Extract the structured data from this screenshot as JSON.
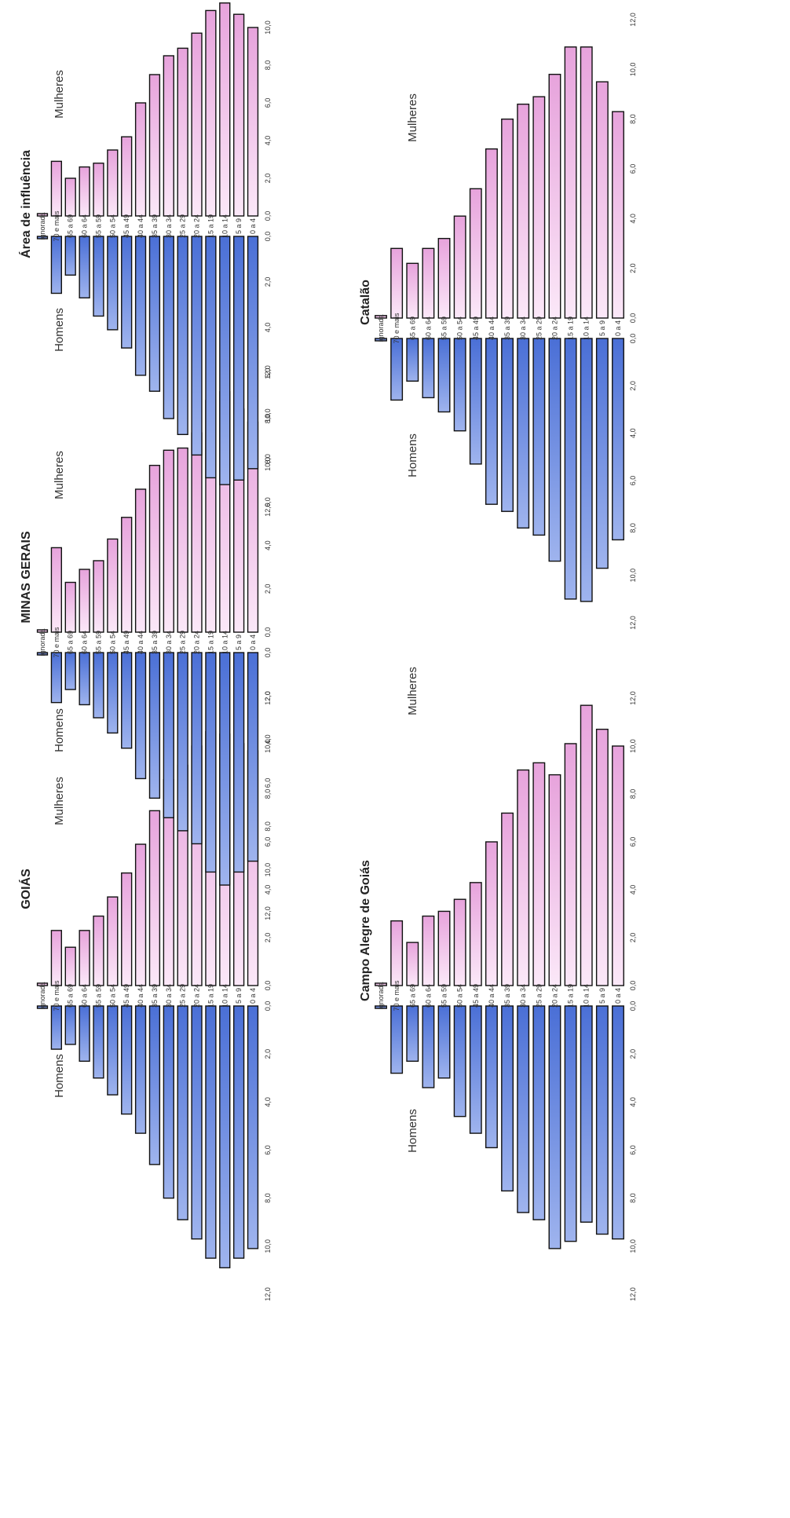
{
  "age_groups": [
    "ignorada",
    "70 e mais",
    "65 a 69",
    "60 a 64",
    "55 a 59",
    "50 a 54",
    "45 a 49",
    "40 a 44",
    "35 a 39",
    "30 a 34",
    "25 a 29",
    "20 a 24",
    "15 a 19",
    "10 a 14",
    "5 a 9",
    "0 a 4"
  ],
  "axis_ticks": [
    "0,0",
    "2,0",
    "4,0",
    "6,0",
    "8,0",
    "10,0",
    "12,0"
  ],
  "colors": {
    "male": "#4a6fd6",
    "male_light": "#9fb4ee",
    "female": "#e7a3dc",
    "female_light": "#fbe8f8",
    "outline": "#111111"
  },
  "chart_data": [
    {
      "type": "bar",
      "orientation": "population-pyramid",
      "title": "GOIÁS",
      "male_label": "Homens",
      "female_label": "Mulheres",
      "categories": [
        "ignorada",
        "70 e mais",
        "65 a 69",
        "60 a 64",
        "55 a 59",
        "50 a 54",
        "45 a 49",
        "40 a 44",
        "35 a 39",
        "30 a 34",
        "25 a 29",
        "20 a 24",
        "15 a 19",
        "10 a 14",
        "5 a 9",
        "0 a 4"
      ],
      "series": [
        {
          "name": "Homens",
          "values": [
            0.1,
            1.8,
            1.6,
            2.3,
            3.0,
            3.7,
            4.5,
            5.3,
            6.6,
            8.0,
            8.9,
            9.7,
            10.5,
            10.9,
            10.5,
            10.1
          ]
        },
        {
          "name": "Mulheres",
          "values": [
            0.1,
            2.3,
            1.6,
            2.3,
            2.9,
            3.7,
            4.7,
            5.9,
            7.3,
            8.6,
            9.2,
            10.0,
            10.6,
            10.5,
            10.1,
            9.8
          ]
        }
      ],
      "xlim": [
        0,
        12
      ]
    },
    {
      "type": "bar",
      "orientation": "population-pyramid",
      "title": "MINAS GERAIS",
      "male_label": "Homens",
      "female_label": "Mulheres",
      "categories": [
        "ignorada",
        "70 e mais",
        "65 a 69",
        "60 a 64",
        "55 a 59",
        "50 a 54",
        "45 a 49",
        "40 a 44",
        "35 a 39",
        "30 a 34",
        "25 a 29",
        "20 a 24",
        "15 a 19",
        "10 a 14",
        "5 a 9",
        "0 a 4"
      ],
      "series": [
        {
          "name": "Homens",
          "values": [
            0.1,
            2.3,
            1.7,
            2.4,
            3.0,
            3.7,
            4.4,
            5.8,
            6.7,
            7.6,
            8.2,
            8.8,
            10.1,
            10.7,
            10.1,
            9.6
          ]
        },
        {
          "name": "Mulheres",
          "values": [
            0.1,
            3.9,
            2.3,
            2.9,
            3.3,
            4.3,
            5.3,
            6.6,
            7.7,
            8.4,
            8.5,
            9.2,
            10.7,
            11.1,
            10.3,
            9.7
          ]
        }
      ],
      "xlim": [
        0,
        12
      ]
    },
    {
      "type": "bar",
      "orientation": "population-pyramid",
      "title": "Área de influência",
      "male_label": "Homens",
      "female_label": "Mulheres",
      "categories": [
        "ignorada",
        "70 e mais",
        "65 a 69",
        "60 a 64",
        "55 a 59",
        "50 a 54",
        "45 a 49",
        "40 a 44",
        "35 a 39",
        "30 a 34",
        "25 a 29",
        "20 a 24",
        "15 a 19",
        "10 a 14",
        "5 a 9",
        "0 a 4"
      ],
      "series": [
        {
          "name": "Homens",
          "values": [
            0.1,
            2.5,
            1.7,
            2.7,
            3.5,
            4.1,
            4.9,
            6.1,
            6.8,
            8.0,
            8.7,
            9.6,
            10.6,
            10.9,
            10.7,
            10.2
          ]
        },
        {
          "name": "Mulheres",
          "values": [
            0.1,
            2.9,
            2.0,
            2.6,
            2.8,
            3.5,
            4.2,
            6.0,
            7.5,
            8.5,
            8.9,
            9.7,
            10.9,
            11.3,
            10.7,
            10.0
          ]
        }
      ],
      "xlim": [
        0,
        12
      ]
    },
    {
      "type": "bar",
      "orientation": "population-pyramid",
      "title": "Campo Alegre de Goiás",
      "male_label": "Homens",
      "female_label": "Mulheres",
      "categories": [
        "ignorada",
        "70 e mais",
        "65 a 69",
        "60 a 64",
        "55 a 59",
        "50 a 54",
        "45 a 49",
        "40 a 44",
        "35 a 39",
        "30 a 34",
        "25 a 29",
        "20 a 24",
        "15 a 19",
        "10 a 14",
        "5 a 9",
        "0 a 4"
      ],
      "series": [
        {
          "name": "Homens",
          "values": [
            0.1,
            2.8,
            2.3,
            3.4,
            3.0,
            4.6,
            5.3,
            5.9,
            7.7,
            8.6,
            8.9,
            10.1,
            9.8,
            9.0,
            9.5,
            9.7
          ]
        },
        {
          "name": "Mulheres",
          "values": [
            0.1,
            2.7,
            1.8,
            2.9,
            3.1,
            3.6,
            4.3,
            6.0,
            7.2,
            9.0,
            9.3,
            8.8,
            10.1,
            11.7,
            10.7,
            10.0
          ]
        }
      ],
      "xlim": [
        0,
        12
      ]
    },
    {
      "type": "bar",
      "orientation": "population-pyramid",
      "title": "Catalão",
      "male_label": "Homens",
      "female_label": "Mulheres",
      "categories": [
        "ignorada",
        "70 e mais",
        "65 a 69",
        "60 a 64",
        "55 a 59",
        "50 a 54",
        "45 a 49",
        "40 a 44",
        "35 a 39",
        "30 a 34",
        "25 a 29",
        "20 a 24",
        "15 a 19",
        "10 a 14",
        "5 a 9",
        "0 a 4"
      ],
      "series": [
        {
          "name": "Homens",
          "values": [
            0.1,
            2.6,
            1.8,
            2.5,
            3.1,
            3.9,
            5.3,
            7.0,
            7.3,
            8.0,
            8.3,
            9.4,
            11.0,
            11.1,
            9.7,
            8.5
          ]
        },
        {
          "name": "Mulheres",
          "values": [
            0.1,
            2.8,
            2.2,
            2.8,
            3.2,
            4.1,
            5.2,
            6.8,
            8.0,
            8.6,
            8.9,
            9.8,
            10.9,
            10.9,
            9.5,
            8.3
          ]
        }
      ],
      "xlim": [
        0,
        12
      ]
    }
  ]
}
